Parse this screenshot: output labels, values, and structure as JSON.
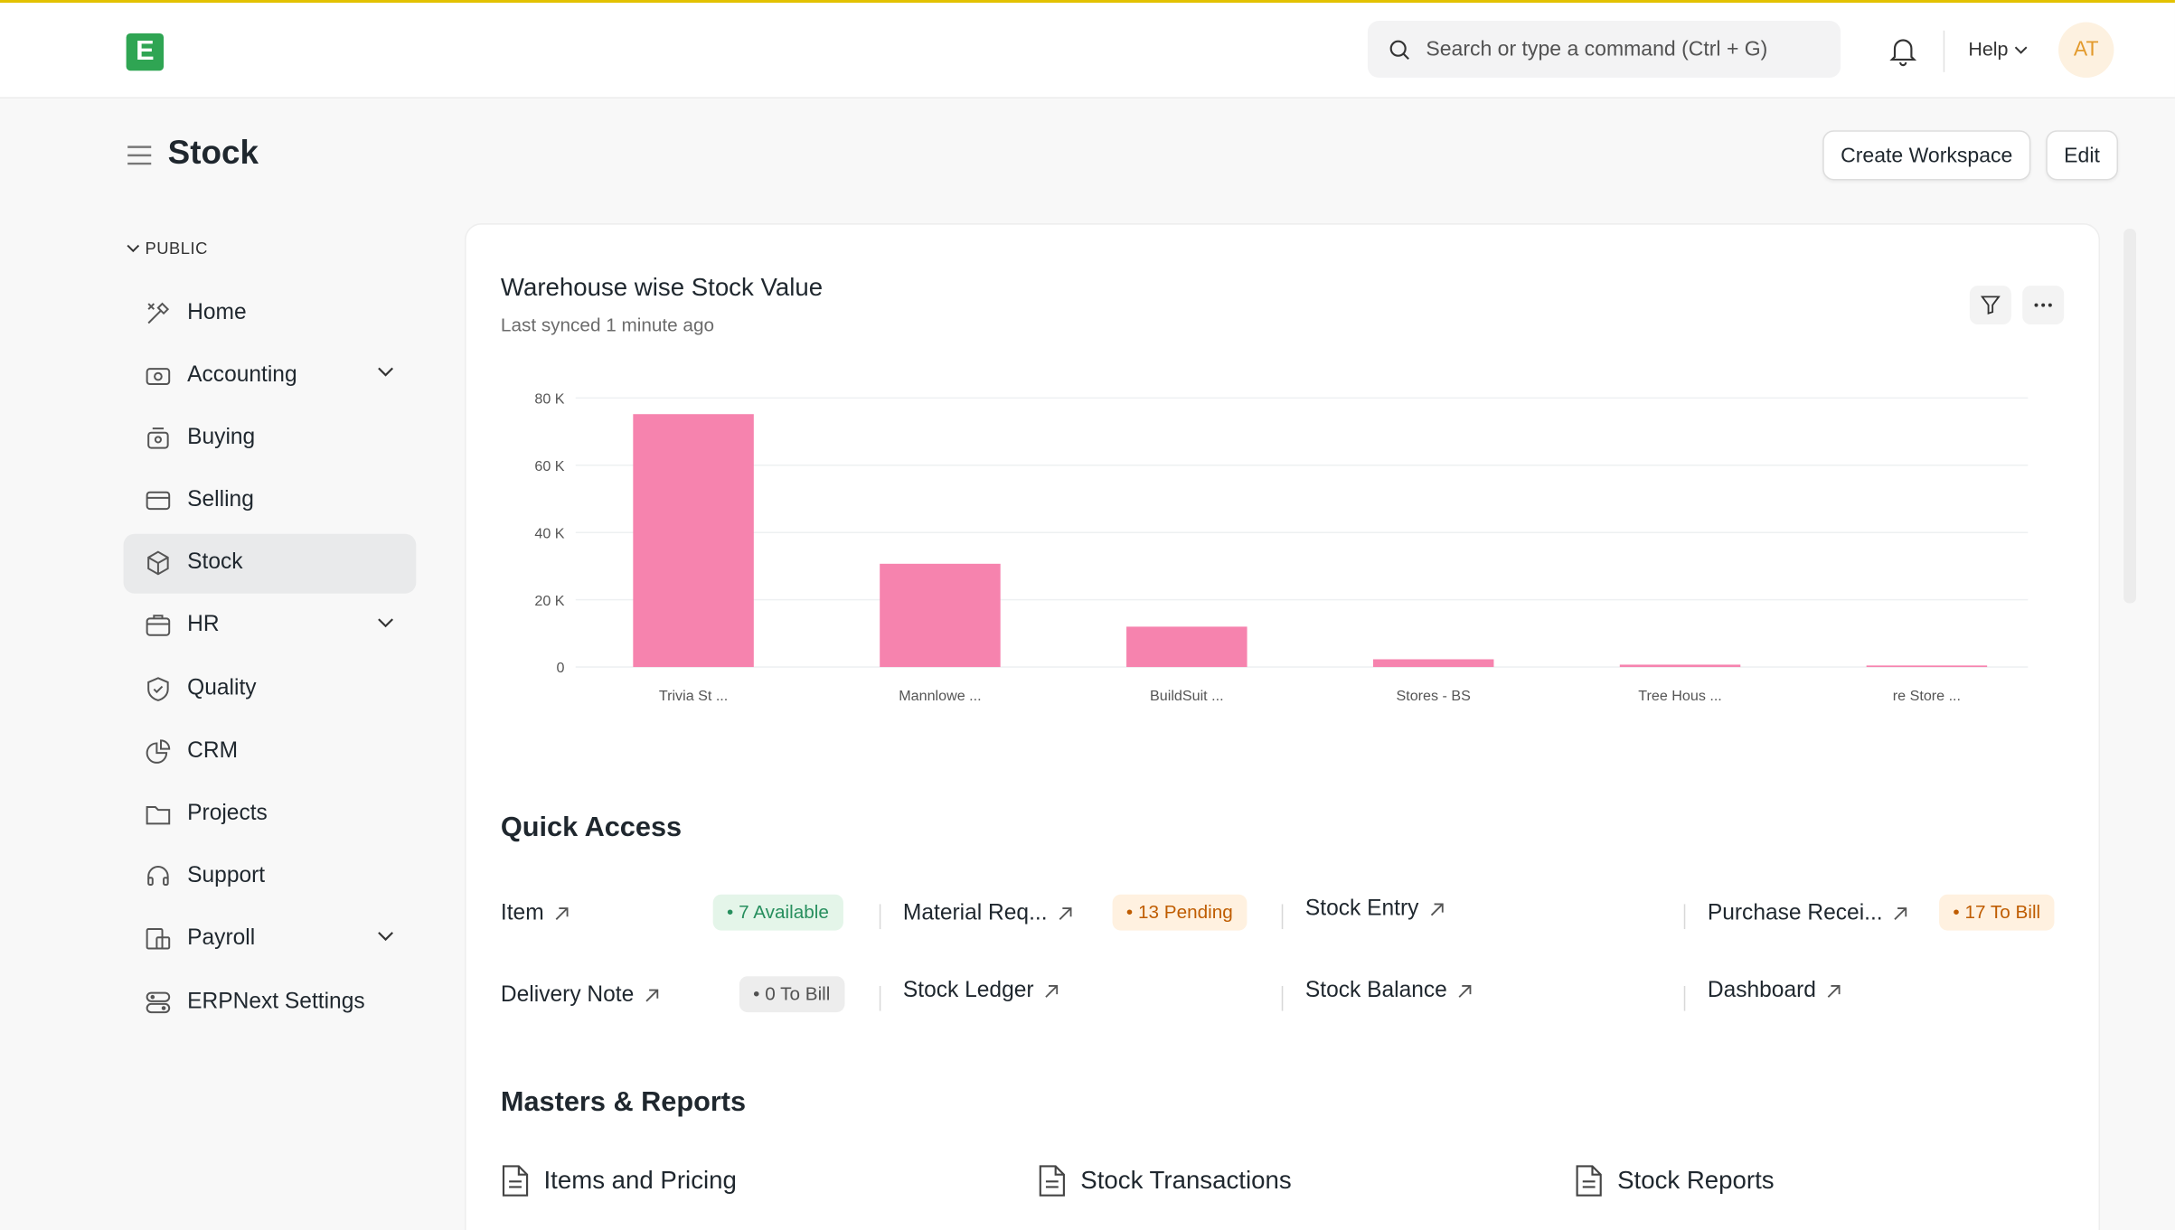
{
  "navbar": {
    "logo_letter": "E",
    "search_placeholder": "Search or type a command (Ctrl + G)",
    "help_label": "Help",
    "avatar_initials": "AT"
  },
  "page": {
    "title": "Stock",
    "create_workspace": "Create Workspace",
    "edit": "Edit"
  },
  "sidebar": {
    "section": "PUBLIC",
    "items": [
      {
        "label": "Home",
        "icon": "tools-icon",
        "expandable": false
      },
      {
        "label": "Accounting",
        "icon": "accounting-icon",
        "expandable": true
      },
      {
        "label": "Buying",
        "icon": "buying-icon",
        "expandable": false
      },
      {
        "label": "Selling",
        "icon": "selling-icon",
        "expandable": false
      },
      {
        "label": "Stock",
        "icon": "stock-box-icon",
        "expandable": false,
        "active": true
      },
      {
        "label": "HR",
        "icon": "hr-icon",
        "expandable": true
      },
      {
        "label": "Quality",
        "icon": "quality-icon",
        "expandable": false
      },
      {
        "label": "CRM",
        "icon": "crm-icon",
        "expandable": false
      },
      {
        "label": "Projects",
        "icon": "folder-icon",
        "expandable": false
      },
      {
        "label": "Support",
        "icon": "headset-icon",
        "expandable": false
      },
      {
        "label": "Payroll",
        "icon": "payroll-icon",
        "expandable": true
      },
      {
        "label": "ERPNext Settings",
        "icon": "settings-icon",
        "expandable": false
      }
    ]
  },
  "card": {
    "title": "Warehouse wise Stock Value",
    "subtitle": "Last synced 1 minute ago"
  },
  "chart_data": {
    "type": "bar",
    "title": "Warehouse wise Stock Value",
    "categories": [
      "Trivia St ...",
      "Mannlowe ...",
      "BuildSuit ...",
      "Stores - BS",
      "Tree Hous ...",
      "re Store ..."
    ],
    "values": [
      75200,
      30700,
      12000,
      2300,
      700,
      450
    ],
    "ylim": [
      0,
      80000
    ],
    "yticks": [
      "0",
      "20 K",
      "40 K",
      "60 K",
      "80 K"
    ],
    "ytick_values": [
      0,
      20000,
      40000,
      60000,
      80000
    ],
    "bar_color": "#f683ae",
    "grid": true
  },
  "quick_access": {
    "title": "Quick Access",
    "items": [
      {
        "label": "Item",
        "badge": "7 Available",
        "badge_type": "green"
      },
      {
        "label": "Material Req...",
        "badge": "13 Pending",
        "badge_type": "orange"
      },
      {
        "label": "Stock Entry",
        "badge": null
      },
      {
        "label": "Purchase Recei...",
        "badge": "17 To Bill",
        "badge_type": "orange"
      },
      {
        "label": "Delivery Note",
        "badge": "0 To Bill",
        "badge_type": "gray"
      },
      {
        "label": "Stock Ledger",
        "badge": null
      },
      {
        "label": "Stock Balance",
        "badge": null
      },
      {
        "label": "Dashboard",
        "badge": null
      }
    ]
  },
  "masters": {
    "title": "Masters & Reports",
    "items": [
      "Items and Pricing",
      "Stock Transactions",
      "Stock Reports"
    ]
  },
  "colors": {
    "accent_green": "#2fa553",
    "badge_green_bg": "#e4f5e9",
    "badge_green_fg": "#278f5e",
    "badge_orange_bg": "#fff1e0",
    "badge_orange_fg": "#bf5c00",
    "badge_gray_bg": "#ededed",
    "badge_gray_fg": "#525252"
  }
}
